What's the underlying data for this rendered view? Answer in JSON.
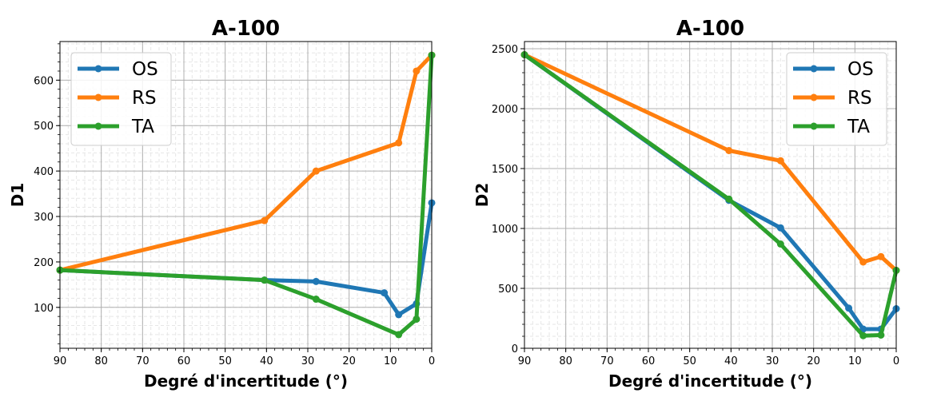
{
  "colors": {
    "OS": "#1f77b4",
    "RS": "#ff7f0e",
    "TA": "#2ca02c",
    "grid_major": "#b0b0b0",
    "grid_minor": "#e6e6e6"
  },
  "chart_data": [
    {
      "type": "line",
      "title": "A-100",
      "xlabel": "Degré d'incertitude (°)",
      "ylabel": "D1",
      "xlim": [
        90,
        0
      ],
      "ylim": [
        10,
        685
      ],
      "xticks": [
        90,
        80,
        70,
        60,
        50,
        40,
        30,
        20,
        10,
        0
      ],
      "yticks": [
        100,
        200,
        300,
        400,
        500,
        600
      ],
      "grid": true,
      "legend_position": "top-left",
      "series": [
        {
          "name": "OS",
          "x": [
            90,
            40.5,
            28,
            11.5,
            8,
            3.7,
            0
          ],
          "y": [
            182,
            160,
            157,
            132,
            84,
            108,
            330
          ]
        },
        {
          "name": "RS",
          "x": [
            90,
            40.5,
            28,
            8,
            3.7,
            0
          ],
          "y": [
            182,
            291,
            400,
            462,
            620,
            655
          ]
        },
        {
          "name": "TA",
          "x": [
            90,
            40.5,
            28,
            8,
            3.7,
            0
          ],
          "y": [
            182,
            160,
            118,
            40,
            74,
            655
          ]
        }
      ]
    },
    {
      "type": "line",
      "title": "A-100",
      "xlabel": "Degré d'incertitude (°)",
      "ylabel": "D2",
      "xlim": [
        90,
        0
      ],
      "ylim": [
        0,
        2560
      ],
      "xticks": [
        90,
        80,
        70,
        60,
        50,
        40,
        30,
        20,
        10,
        0
      ],
      "yticks": [
        0,
        500,
        1000,
        1500,
        2000,
        2500
      ],
      "grid": true,
      "legend_position": "top-right",
      "series": [
        {
          "name": "OS",
          "x": [
            90,
            40.5,
            28,
            11.5,
            8,
            3.7,
            0
          ],
          "y": [
            2450,
            1235,
            1005,
            335,
            160,
            160,
            330
          ]
        },
        {
          "name": "RS",
          "x": [
            90,
            40.5,
            28,
            8,
            3.7,
            0
          ],
          "y": [
            2450,
            1650,
            1565,
            720,
            765,
            650
          ]
        },
        {
          "name": "TA",
          "x": [
            90,
            40.5,
            28,
            8,
            3.7,
            0
          ],
          "y": [
            2450,
            1245,
            870,
            105,
            110,
            650
          ]
        }
      ]
    }
  ]
}
